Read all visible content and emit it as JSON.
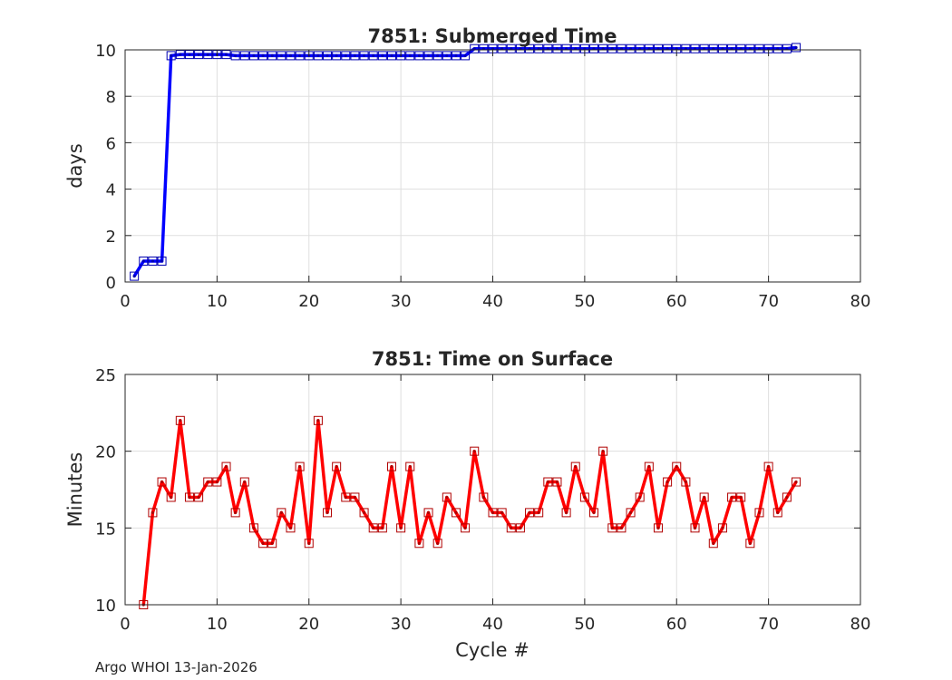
{
  "footer": "Argo WHOI 13-Jan-2026",
  "chart_data": [
    {
      "type": "line",
      "title": "7851: Submerged Time",
      "xlabel": "",
      "ylabel": "days",
      "xlim": [
        0,
        80
      ],
      "ylim": [
        0,
        10
      ],
      "xticks": [
        0,
        10,
        20,
        30,
        40,
        50,
        60,
        70,
        80
      ],
      "yticks": [
        0,
        2,
        4,
        6,
        8,
        10
      ],
      "grid": true,
      "color": "#0000ff",
      "marker": "square",
      "x": [
        1,
        2,
        3,
        4,
        5,
        6,
        7,
        8,
        9,
        10,
        11,
        12,
        13,
        14,
        15,
        16,
        17,
        18,
        19,
        20,
        21,
        22,
        23,
        24,
        25,
        26,
        27,
        28,
        29,
        30,
        31,
        32,
        33,
        34,
        35,
        36,
        37,
        38,
        39,
        40,
        41,
        42,
        43,
        44,
        45,
        46,
        47,
        48,
        49,
        50,
        51,
        52,
        53,
        54,
        55,
        56,
        57,
        58,
        59,
        60,
        61,
        62,
        63,
        64,
        65,
        66,
        67,
        68,
        69,
        70,
        71,
        72,
        73
      ],
      "y": [
        0.25,
        0.9,
        0.9,
        0.9,
        9.75,
        9.8,
        9.8,
        9.8,
        9.8,
        9.8,
        9.8,
        9.75,
        9.75,
        9.75,
        9.75,
        9.75,
        9.75,
        9.75,
        9.75,
        9.75,
        9.75,
        9.75,
        9.75,
        9.75,
        9.75,
        9.75,
        9.75,
        9.75,
        9.75,
        9.75,
        9.75,
        9.75,
        9.75,
        9.75,
        9.75,
        9.75,
        9.75,
        10.05,
        10.05,
        10.05,
        10.05,
        10.05,
        10.05,
        10.05,
        10.05,
        10.05,
        10.05,
        10.05,
        10.05,
        10.05,
        10.05,
        10.05,
        10.05,
        10.05,
        10.05,
        10.05,
        10.05,
        10.05,
        10.05,
        10.05,
        10.05,
        10.05,
        10.05,
        10.05,
        10.05,
        10.05,
        10.05,
        10.05,
        10.05,
        10.05,
        10.05,
        10.05,
        10.1
      ]
    },
    {
      "type": "line",
      "title": "7851: Time on Surface",
      "xlabel": "Cycle #",
      "ylabel": "Minutes",
      "xlim": [
        0,
        80
      ],
      "ylim": [
        10,
        25
      ],
      "xticks": [
        0,
        10,
        20,
        30,
        40,
        50,
        60,
        70,
        80
      ],
      "yticks": [
        10,
        15,
        20,
        25
      ],
      "grid": true,
      "color": "#ff0000",
      "marker": "square",
      "x": [
        2,
        3,
        4,
        5,
        6,
        7,
        8,
        9,
        10,
        11,
        12,
        13,
        14,
        15,
        16,
        17,
        18,
        19,
        20,
        21,
        22,
        23,
        24,
        25,
        26,
        27,
        28,
        29,
        30,
        31,
        32,
        33,
        34,
        35,
        36,
        37,
        38,
        39,
        40,
        41,
        42,
        43,
        44,
        45,
        46,
        47,
        48,
        49,
        50,
        51,
        52,
        53,
        54,
        55,
        56,
        57,
        58,
        59,
        60,
        61,
        62,
        63,
        64,
        65,
        66,
        67,
        68,
        69,
        70,
        71,
        72,
        73
      ],
      "y": [
        10,
        16,
        18,
        17,
        22,
        17,
        17,
        18,
        18,
        19,
        16,
        18,
        15,
        14,
        14,
        16,
        15,
        19,
        14,
        22,
        16,
        19,
        17,
        17,
        16,
        15,
        15,
        19,
        15,
        19,
        14,
        16,
        14,
        17,
        16,
        15,
        20,
        17,
        16,
        16,
        15,
        15,
        16,
        16,
        18,
        18,
        16,
        19,
        17,
        16,
        20,
        15,
        15,
        16,
        17,
        19,
        15,
        18,
        19,
        18,
        15,
        17,
        14,
        15,
        17,
        17,
        14,
        16,
        19,
        16,
        17,
        18
      ]
    }
  ]
}
